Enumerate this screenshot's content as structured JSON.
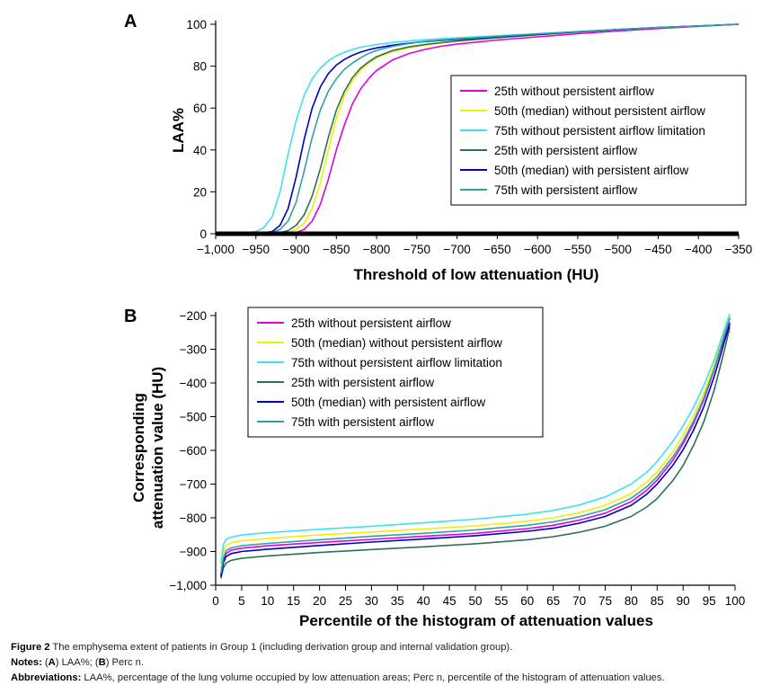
{
  "figure": {
    "panel_a_label": "A",
    "panel_b_label": "B"
  },
  "chart_data": [
    {
      "type": "line",
      "panel": "A",
      "xlabel": "Threshold of low attenuation (HU)",
      "ylabel": "LAA%",
      "xlim": [
        -1000,
        -350
      ],
      "ylim": [
        0,
        100
      ],
      "xticks": [
        -1000,
        -950,
        -900,
        -850,
        -800,
        -750,
        -700,
        -650,
        -600,
        -550,
        -500,
        -450,
        -400,
        -350
      ],
      "xtick_labels": [
        "−1,000",
        "−950",
        "−900",
        "−850",
        "−800",
        "−750",
        "−700",
        "−650",
        "−600",
        "−550",
        "−500",
        "−450",
        "−400",
        "−350"
      ],
      "yticks": [
        0,
        20,
        40,
        60,
        80,
        100
      ],
      "ytick_labels": [
        "0",
        "20",
        "40",
        "60",
        "80",
        "100"
      ],
      "legend_position": "right",
      "x": [
        -1000,
        -960,
        -950,
        -940,
        -930,
        -920,
        -910,
        -900,
        -890,
        -880,
        -870,
        -860,
        -850,
        -840,
        -830,
        -820,
        -810,
        -800,
        -780,
        -760,
        -740,
        -720,
        -700,
        -650,
        -600,
        -550,
        -500,
        -450,
        -400,
        -350
      ],
      "series": [
        {
          "name": "25th without persistent airflow",
          "color": "#e000e0",
          "values": [
            0,
            0,
            0,
            0,
            0,
            0,
            0,
            0.5,
            2,
            6,
            14,
            26,
            40,
            52,
            62,
            69,
            74,
            78,
            83,
            86,
            88,
            89.5,
            90.5,
            92.5,
            94,
            95.5,
            96.8,
            98,
            99,
            100
          ]
        },
        {
          "name": "50th (median) without persistent airflow",
          "color": "#f0f000",
          "values": [
            0,
            0,
            0,
            0,
            0,
            0,
            0.5,
            2,
            5,
            12,
            24,
            40,
            55,
            66,
            73,
            78,
            81.5,
            84,
            87,
            88.7,
            90,
            91,
            91.8,
            93.5,
            95,
            96.3,
            97.4,
            98.4,
            99.2,
            100
          ]
        },
        {
          "name": "75th without persistent airflow limitation",
          "color": "#40e0f0",
          "values": [
            0,
            0.5,
            1,
            3,
            8,
            20,
            38,
            54,
            66,
            74,
            79,
            82.5,
            85,
            86.6,
            88,
            89,
            89.7,
            90.3,
            91.3,
            92,
            92.6,
            93.1,
            93.5,
            94.5,
            95.5,
            96.5,
            97.5,
            98.4,
            99.2,
            100
          ]
        },
        {
          "name": "25th with persistent airflow",
          "color": "#2e6e5a",
          "values": [
            0,
            0,
            0,
            0,
            0,
            0.5,
            1.5,
            4,
            9,
            18,
            31,
            46,
            59,
            68,
            74.5,
            79,
            82,
            84.5,
            87.5,
            89.2,
            90.3,
            91.2,
            92,
            93.6,
            95,
            96.3,
            97.4,
            98.4,
            99.2,
            100
          ]
        },
        {
          "name": "50th (median) with persistent airflow",
          "color": "#0000c0",
          "values": [
            0,
            0,
            0,
            0.5,
            1,
            4,
            12,
            27,
            45,
            60,
            70,
            76.5,
            80.5,
            83.2,
            85.2,
            86.7,
            87.8,
            88.7,
            90,
            91,
            91.7,
            92.3,
            92.8,
            94,
            95.2,
            96.4,
            97.5,
            98.4,
            99.2,
            100
          ]
        },
        {
          "name": "75th with persistent airflow",
          "color": "#30a0a8",
          "values": [
            0,
            0,
            0,
            0,
            0.5,
            2,
            6,
            15,
            30,
            46,
            59,
            68,
            74,
            78.5,
            81.5,
            84,
            86,
            87.5,
            89.5,
            90.8,
            91.8,
            92.5,
            93,
            94.2,
            95.4,
            96.5,
            97.5,
            98.4,
            99.2,
            100
          ]
        }
      ]
    },
    {
      "type": "line",
      "panel": "B",
      "xlabel": "Percentile of the histogram of attenuation values",
      "ylabel": [
        "Corresponding",
        "attenuation value (HU)"
      ],
      "xlim": [
        0,
        100
      ],
      "ylim": [
        -1000,
        -200
      ],
      "xticks": [
        0,
        5,
        10,
        15,
        20,
        25,
        30,
        35,
        40,
        45,
        50,
        55,
        60,
        65,
        70,
        75,
        80,
        85,
        90,
        95,
        100
      ],
      "xtick_labels": [
        "0",
        "5",
        "10",
        "15",
        "20",
        "25",
        "30",
        "35",
        "40",
        "45",
        "50",
        "55",
        "60",
        "65",
        "70",
        "75",
        "80",
        "85",
        "90",
        "95",
        "100"
      ],
      "yticks": [
        -1000,
        -900,
        -800,
        -700,
        -600,
        -500,
        -400,
        -300,
        -200
      ],
      "ytick_labels": [
        "−1,000",
        "−900",
        "−800",
        "−700",
        "−600",
        "−500",
        "−400",
        "−300",
        "−200"
      ],
      "legend_position": "top-left",
      "x": [
        1,
        1.5,
        2,
        3,
        5,
        10,
        20,
        30,
        40,
        50,
        60,
        65,
        70,
        75,
        80,
        83,
        85,
        88,
        90,
        92,
        94,
        96,
        97,
        98,
        99
      ],
      "series": [
        {
          "name": "25th without persistent airflow",
          "color": "#e000e0",
          "values": [
            -970,
            -925,
            -906,
            -896,
            -890,
            -883,
            -873,
            -864,
            -855,
            -846,
            -832,
            -822,
            -807,
            -786,
            -752,
            -718,
            -688,
            -630,
            -580,
            -520,
            -450,
            -360,
            -310,
            -265,
            -220
          ]
        },
        {
          "name": "50th (median) without persistent airflow",
          "color": "#f0f000",
          "values": [
            -950,
            -898,
            -882,
            -874,
            -868,
            -861,
            -851,
            -842,
            -833,
            -824,
            -810,
            -800,
            -785,
            -763,
            -728,
            -694,
            -664,
            -605,
            -555,
            -497,
            -430,
            -345,
            -295,
            -245,
            -200
          ]
        },
        {
          "name": "75th without persistent airflow limitation",
          "color": "#40e0f0",
          "values": [
            -935,
            -878,
            -864,
            -857,
            -851,
            -844,
            -834,
            -825,
            -815,
            -804,
            -789,
            -778,
            -762,
            -738,
            -700,
            -665,
            -633,
            -574,
            -527,
            -472,
            -407,
            -330,
            -285,
            -238,
            -195
          ]
        },
        {
          "name": "25th with persistent airflow",
          "color": "#2e6e5a",
          "values": [
            -980,
            -948,
            -934,
            -926,
            -920,
            -913,
            -903,
            -894,
            -886,
            -877,
            -865,
            -856,
            -843,
            -825,
            -796,
            -768,
            -743,
            -690,
            -645,
            -585,
            -515,
            -420,
            -360,
            -300,
            -235
          ]
        },
        {
          "name": "50th (median) with persistent airflow",
          "color": "#0000c0",
          "values": [
            -975,
            -932,
            -915,
            -906,
            -900,
            -893,
            -882,
            -872,
            -863,
            -853,
            -840,
            -831,
            -816,
            -796,
            -763,
            -730,
            -700,
            -645,
            -598,
            -540,
            -470,
            -380,
            -328,
            -275,
            -225
          ]
        },
        {
          "name": "75th with persistent airflow",
          "color": "#30a0a8",
          "values": [
            -965,
            -918,
            -898,
            -889,
            -883,
            -876,
            -865,
            -855,
            -846,
            -836,
            -822,
            -812,
            -797,
            -776,
            -742,
            -708,
            -678,
            -620,
            -572,
            -513,
            -444,
            -357,
            -306,
            -255,
            -208
          ]
        }
      ]
    }
  ],
  "caption": {
    "fig_label": "Figure 2",
    "fig_text": " The emphysema extent of patients in Group 1 (including derivation group and internal validation group).",
    "notes_label": "Notes:",
    "notes_parts": [
      " (",
      "A",
      ") LAA%; (",
      "B",
      ") Perc n."
    ],
    "abbrev_label": "Abbreviations:",
    "abbrev_text": " LAA%, percentage of the lung volume occupied by low attenuation areas; Perc n, percentile of the histogram of attenuation values."
  }
}
